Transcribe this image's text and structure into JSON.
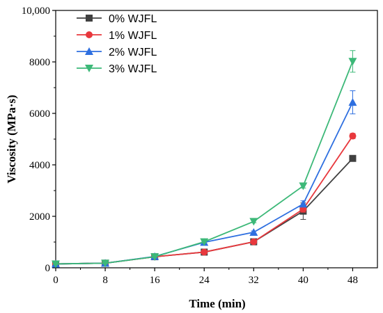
{
  "chart_data": {
    "type": "line",
    "xlabel": "Time (min)",
    "ylabel": "Viscosity (MPa·s)",
    "x": [
      0,
      8,
      16,
      24,
      32,
      40,
      48
    ],
    "xlim": [
      0,
      52
    ],
    "ylim": [
      0,
      10000
    ],
    "x_ticks": [
      0,
      8,
      16,
      24,
      32,
      40,
      48
    ],
    "y_ticks": [
      0,
      2000,
      4000,
      6000,
      8000,
      10000
    ],
    "x_tick_labels": [
      "0",
      "8",
      "16",
      "24",
      "32",
      "40",
      "48"
    ],
    "y_tick_labels": [
      "0",
      "2000",
      "4000",
      "6000",
      "8000",
      "10,000"
    ],
    "grid": false,
    "legend_position": "top-left",
    "series": [
      {
        "name": "0% WJFL",
        "color": "#404040",
        "marker": "square",
        "values": [
          150,
          180,
          430,
          610,
          1010,
          2200,
          4250
        ],
        "errors": [
          20,
          20,
          30,
          40,
          60,
          320,
          60
        ]
      },
      {
        "name": "1% WJFL",
        "color": "#e8383d",
        "marker": "circle",
        "values": [
          150,
          180,
          430,
          610,
          1010,
          2280,
          5120
        ],
        "errors": [
          20,
          20,
          30,
          40,
          60,
          120,
          100
        ]
      },
      {
        "name": "2% WJFL",
        "color": "#2e6fe0",
        "marker": "triangle-up",
        "values": [
          150,
          180,
          440,
          990,
          1380,
          2480,
          6430
        ],
        "errors": [
          20,
          20,
          30,
          40,
          50,
          120,
          450
        ]
      },
      {
        "name": "3% WJFL",
        "color": "#3cb878",
        "marker": "triangle-down",
        "values": [
          150,
          180,
          430,
          1010,
          1800,
          3180,
          8020
        ],
        "errors": [
          20,
          20,
          30,
          40,
          50,
          80,
          420
        ]
      }
    ]
  }
}
